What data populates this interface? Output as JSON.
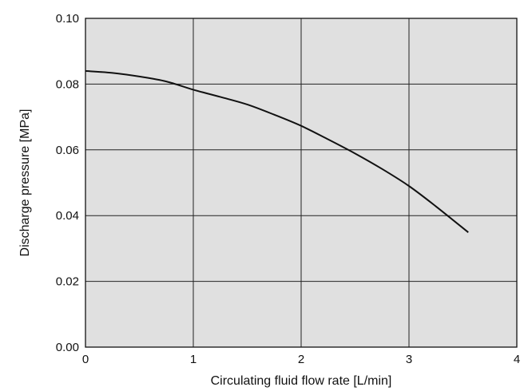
{
  "chart_data": {
    "type": "line",
    "title": "",
    "xlabel": "Circulating fluid flow rate [L/min]",
    "ylabel": "Discharge pressure [MPa]",
    "xlim": [
      0,
      4
    ],
    "ylim": [
      0,
      0.1
    ],
    "x_ticks": [
      0,
      1,
      2,
      3,
      4
    ],
    "x_tick_labels": [
      "0",
      "1",
      "2",
      "3",
      "4"
    ],
    "y_ticks": [
      0,
      0.02,
      0.04,
      0.06,
      0.08,
      0.1
    ],
    "y_tick_labels": [
      "0.00",
      "0.02",
      "0.04",
      "0.06",
      "0.08",
      "0.10"
    ],
    "grid": true,
    "legend": "none",
    "colors": {
      "plot_background": "#e0e0e0",
      "line": "#111111",
      "grid": "#222222"
    },
    "series": [
      {
        "x": [
          0,
          0.25,
          0.5,
          0.75,
          1.0,
          1.25,
          1.5,
          1.75,
          2.0,
          2.25,
          2.5,
          2.75,
          3.0,
          3.25,
          3.55
        ],
        "y": [
          0.084,
          0.0834,
          0.0823,
          0.0808,
          0.0783,
          0.0761,
          0.0738,
          0.0707,
          0.0673,
          0.0632,
          0.0589,
          0.0542,
          0.049,
          0.0428,
          0.0349
        ]
      }
    ]
  }
}
